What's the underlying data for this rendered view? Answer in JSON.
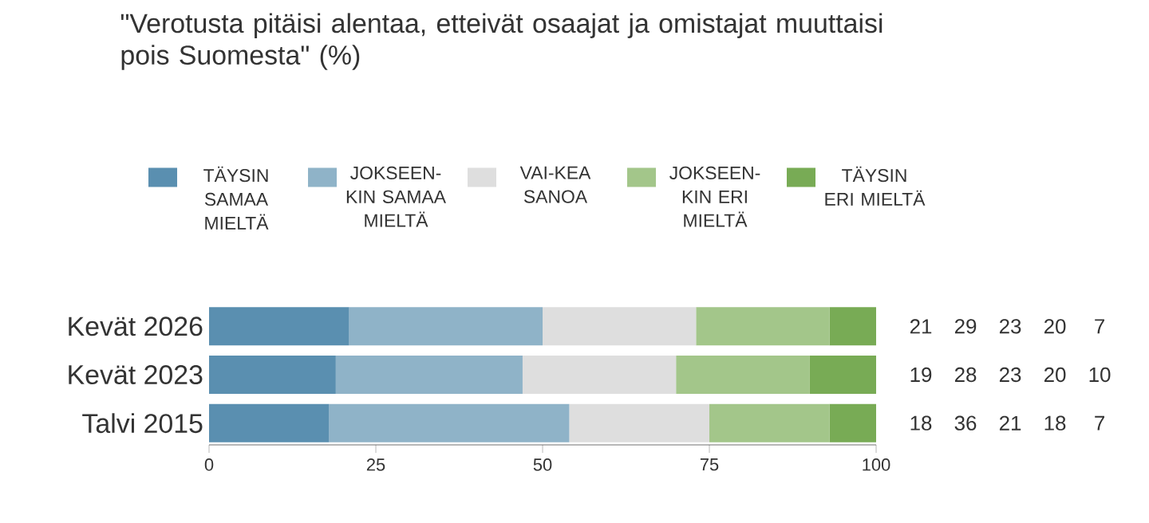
{
  "chart_data": {
    "type": "bar",
    "orientation": "horizontal",
    "stacked": true,
    "title": "\"Verotusta pitäisi alentaa, etteivät osaajat ja omistajat muuttaisi pois Suomesta\" (%)",
    "categories": [
      "Kevät 2026",
      "Kevät 2023",
      "Talvi 2015"
    ],
    "series": [
      {
        "name": "TÄYSIN SAMAA MIELTÄ",
        "color": "#5a8fb0",
        "values": [
          21,
          19,
          18
        ]
      },
      {
        "name": "JOKSEEN-KIN SAMAA MIELTÄ",
        "color": "#8fb3c8",
        "values": [
          29,
          28,
          36
        ]
      },
      {
        "name": "VAI-KEA SANOA",
        "color": "#dedede",
        "values": [
          23,
          23,
          21
        ]
      },
      {
        "name": "JOKSEEN-KIN ERI MIELTÄ",
        "color": "#a3c68a",
        "values": [
          20,
          20,
          18
        ]
      },
      {
        "name": "TÄYSIN ERI MIELTÄ",
        "color": "#78ab55",
        "values": [
          7,
          10,
          7
        ]
      }
    ],
    "xlim": [
      0,
      100
    ],
    "xticks": [
      0,
      25,
      50,
      75,
      100
    ],
    "data_labels": true,
    "legend": "top"
  }
}
